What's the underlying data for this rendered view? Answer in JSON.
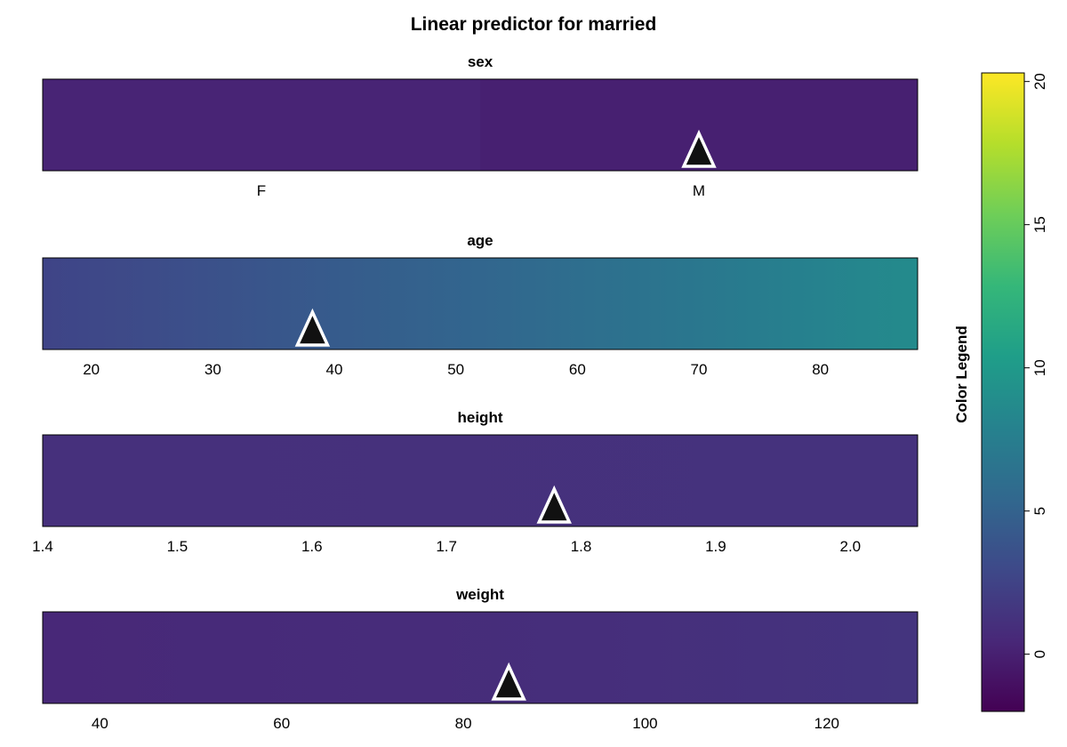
{
  "chart_data": {
    "type": "heatmap",
    "title": "Linear predictor for married",
    "color_scale": {
      "label": "Color Legend",
      "range": [
        -2,
        20.3
      ],
      "ticks": [
        0,
        5,
        10,
        15,
        20
      ],
      "colors": [
        "#440154",
        "#482878",
        "#3e4989",
        "#31688e",
        "#26828e",
        "#1f9e89",
        "#35b779",
        "#6ece58",
        "#b5de2b",
        "#fde725"
      ]
    },
    "panels": [
      {
        "title": "sex",
        "kind": "categorical",
        "categories": [
          "F",
          "M"
        ],
        "values": [
          0.25,
          0.0
        ],
        "marker": "M"
      },
      {
        "title": "age",
        "kind": "numeric",
        "x_range": [
          16,
          88
        ],
        "ticks": [
          20,
          30,
          40,
          50,
          60,
          70,
          80
        ],
        "x": [
          16,
          25,
          34,
          43,
          52,
          61,
          70,
          79,
          88
        ],
        "values": [
          2.6,
          3.2,
          3.9,
          4.6,
          5.3,
          6.1,
          6.9,
          7.8,
          8.7
        ],
        "marker": 38.2
      },
      {
        "title": "height",
        "kind": "numeric",
        "x_range": [
          1.4,
          2.05
        ],
        "ticks": [
          "1.4",
          "1.5",
          "1.6",
          "1.7",
          "1.8",
          "1.9",
          "2.0"
        ],
        "x": [
          1.4,
          2.05
        ],
        "values": [
          1.05,
          1.25
        ],
        "marker": 1.78
      },
      {
        "title": "weight",
        "kind": "numeric",
        "x_range": [
          33.7,
          130
        ],
        "ticks": [
          40,
          60,
          80,
          100,
          120
        ],
        "x": [
          33.7,
          53.6,
          73.4,
          93.3,
          113.2,
          130
        ],
        "values": [
          0.5,
          0.65,
          0.8,
          0.95,
          1.15,
          1.35
        ],
        "marker": 85
      }
    ]
  }
}
